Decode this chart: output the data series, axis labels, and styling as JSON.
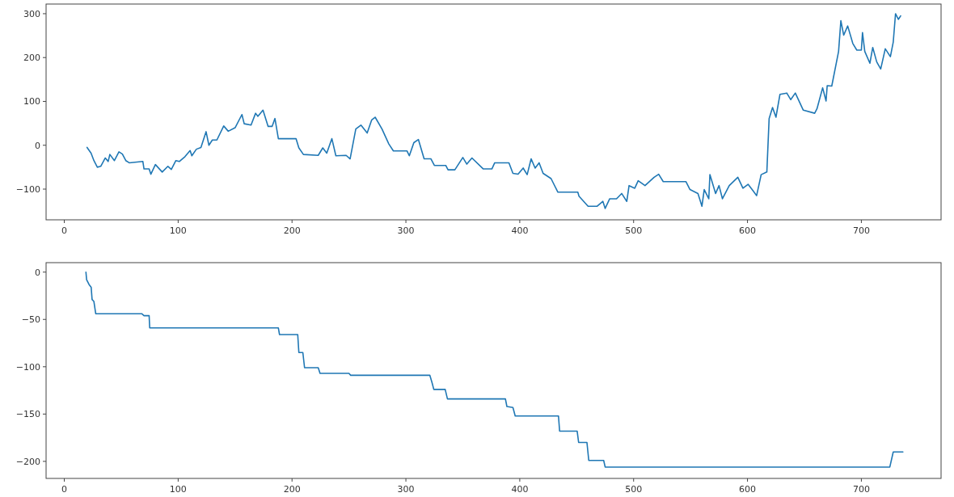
{
  "chart_data": [
    {
      "type": "line",
      "xlim": [
        -16,
        770
      ],
      "ylim": [
        -170,
        322
      ],
      "xticks": [
        0,
        100,
        200,
        300,
        400,
        500,
        600,
        700
      ],
      "yticks": [
        -100,
        0,
        100,
        200,
        300
      ],
      "grid": false,
      "series": [
        {
          "color": "#1f77b4",
          "x": [
            20,
            23.5,
            26,
            29,
            32,
            36,
            38.5,
            40,
            44,
            48,
            51,
            54,
            57,
            69,
            70,
            74.5,
            76,
            80,
            86,
            91,
            94,
            98,
            101,
            106,
            110.5,
            112,
            116,
            120,
            124.5,
            127,
            130,
            134,
            140,
            144,
            150,
            156,
            158,
            164,
            168,
            170,
            174.5,
            179,
            182.5,
            185,
            188,
            203.5,
            206,
            210,
            223,
            227,
            230.5,
            235,
            238.5,
            247.5,
            251,
            256,
            260.5,
            266,
            270,
            273,
            279,
            285,
            289,
            301,
            303,
            307,
            311,
            316,
            322,
            325,
            335,
            337,
            343,
            350,
            353.5,
            358,
            368,
            375.5,
            378,
            390.5,
            394,
            398.5,
            403,
            406.5,
            410,
            413.5,
            417,
            420.5,
            427.5,
            433.5,
            451,
            452,
            460,
            468,
            473,
            475,
            479,
            485,
            489.5,
            494,
            496,
            501,
            504,
            510,
            518,
            522,
            526,
            546,
            549.5,
            556.5,
            560,
            562,
            566,
            567,
            572,
            575,
            578,
            584,
            591.5,
            596,
            600.5,
            605,
            608,
            612,
            617,
            619,
            622,
            625,
            628.5,
            634.5,
            638,
            642,
            649,
            659,
            661,
            666,
            669,
            670,
            674,
            680,
            682,
            684.5,
            688,
            692.5,
            696,
            700,
            701,
            703,
            707.5,
            710,
            713.5,
            717,
            721,
            725.5,
            728,
            730,
            732.5,
            734.5
          ],
          "values": [
            -5,
            -18,
            -35,
            -50,
            -48,
            -29,
            -37,
            -21,
            -35,
            -15,
            -20,
            -35,
            -40,
            -37,
            -54,
            -54,
            -66,
            -44,
            -61,
            -48,
            -55,
            -35,
            -37,
            -26,
            -12,
            -24,
            -9,
            -5,
            31,
            0,
            12,
            12,
            44,
            32,
            40,
            70,
            49,
            46,
            73,
            66,
            80,
            43,
            43,
            61,
            15,
            15,
            -6,
            -21,
            -23,
            -6,
            -18,
            15,
            -24,
            -23,
            -31,
            37,
            46,
            28,
            58,
            64,
            37,
            3,
            -13,
            -13,
            -24,
            6,
            13,
            -31,
            -31,
            -46,
            -46,
            -56,
            -56,
            -28,
            -43,
            -29,
            -54,
            -54,
            -40,
            -40,
            -64,
            -66,
            -52,
            -67,
            -31,
            -52,
            -40,
            -64,
            -76,
            -107,
            -107,
            -116,
            -139,
            -139,
            -128,
            -144,
            -122,
            -122,
            -110,
            -128,
            -92,
            -98,
            -81,
            -92,
            -73,
            -66,
            -83,
            -83,
            -101,
            -110,
            -139,
            -101,
            -122,
            -67,
            -110,
            -92,
            -122,
            -92,
            -73,
            -98,
            -89,
            -104,
            -115,
            -67,
            -61,
            61,
            86,
            64,
            116,
            119,
            104,
            119,
            80,
            73,
            83,
            131,
            101,
            136,
            135,
            214,
            284,
            251,
            272,
            232,
            217,
            217,
            257,
            214,
            187,
            223,
            190,
            174,
            220,
            202,
            235,
            300,
            287,
            295
          ]
        }
      ]
    },
    {
      "type": "line",
      "xlim": [
        -16,
        770
      ],
      "ylim": [
        -218,
        10
      ],
      "xticks": [
        0,
        100,
        200,
        300,
        400,
        500,
        600,
        700
      ],
      "yticks": [
        -200,
        -150,
        -100,
        -50,
        0
      ],
      "grid": false,
      "series": [
        {
          "color": "#1f77b4",
          "x": [
            19,
            19.6,
            21.7,
            23.6,
            24.4,
            26,
            27.6,
            68,
            70,
            74.5,
            75,
            188,
            189,
            205,
            206,
            209.5,
            211,
            223,
            224.6,
            250,
            251.5,
            321,
            323,
            324.5,
            334.5,
            336.5,
            387.4,
            388.7,
            394,
            396,
            434,
            435,
            450.4,
            451.7,
            459,
            460.6,
            473.7,
            475,
            725,
            728,
            736.5
          ],
          "values": [
            0,
            -8,
            -13,
            -16,
            -29,
            -31,
            -44,
            -44,
            -46,
            -46,
            -59,
            -59,
            -66,
            -66,
            -85,
            -85,
            -101,
            -101,
            -107,
            -107,
            -109,
            -109,
            -117,
            -124,
            -124,
            -134,
            -134,
            -142,
            -143,
            -152,
            -152,
            -168,
            -168,
            -180,
            -180,
            -199,
            -199,
            -206,
            -206,
            -190,
            -190
          ]
        }
      ]
    }
  ]
}
